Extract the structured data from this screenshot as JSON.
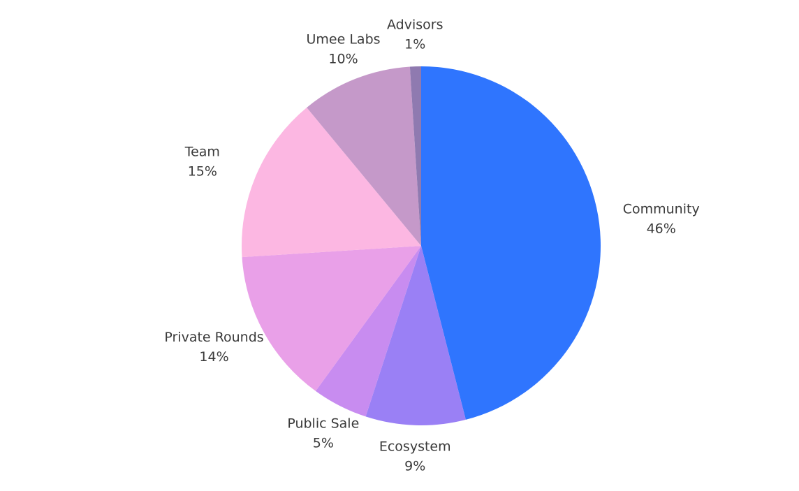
{
  "chart_data": {
    "type": "pie",
    "categories": [
      "Community",
      "Ecosystem",
      "Public Sale",
      "Private Rounds",
      "Team",
      "Umee Labs",
      "Advisors"
    ],
    "values": [
      46,
      9,
      5,
      14,
      15,
      10,
      1
    ],
    "value_labels": [
      "46%",
      "9%",
      "5%",
      "14%",
      "15%",
      "10%",
      "1%"
    ],
    "colors": [
      "#2f75fe",
      "#9a80f5",
      "#c88cf0",
      "#e9a0e8",
      "#fcb7e2",
      "#c599c9",
      "#8f7ab0"
    ]
  }
}
